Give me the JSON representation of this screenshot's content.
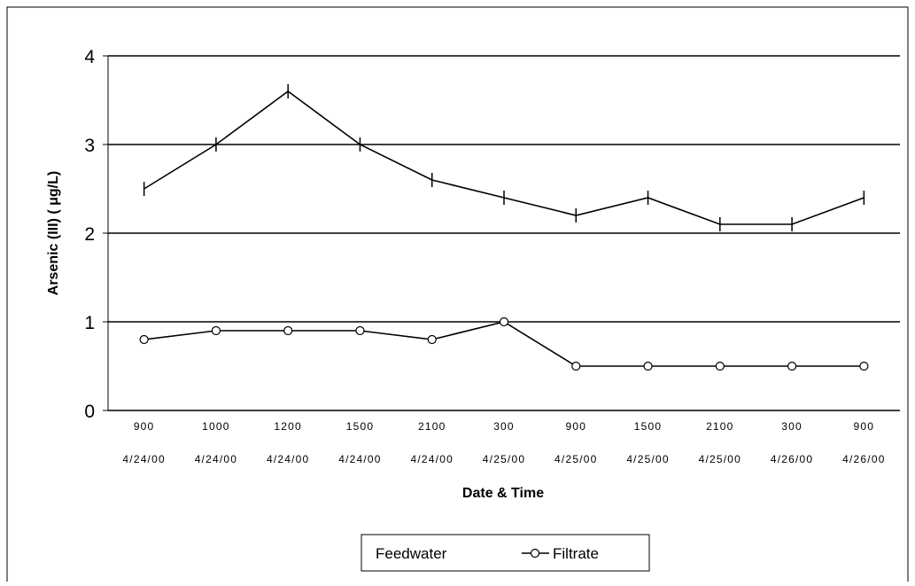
{
  "chart_data": {
    "type": "line",
    "categories": [
      [
        "900",
        "4/24/00"
      ],
      [
        "1000",
        "4/24/00"
      ],
      [
        "1200",
        "4/24/00"
      ],
      [
        "1500",
        "4/24/00"
      ],
      [
        "2100",
        "4/24/00"
      ],
      [
        "300",
        "4/25/00"
      ],
      [
        "900",
        "4/25/00"
      ],
      [
        "1500",
        "4/25/00"
      ],
      [
        "2100",
        "4/25/00"
      ],
      [
        "300",
        "4/26/00"
      ],
      [
        "900",
        "4/26/00"
      ]
    ],
    "series": [
      {
        "name": "Feedwater",
        "marker": "dash",
        "values": [
          2.5,
          3.0,
          3.6,
          3.0,
          2.6,
          2.4,
          2.2,
          2.4,
          2.1,
          2.1,
          2.4
        ]
      },
      {
        "name": "Filtrate",
        "marker": "circle",
        "values": [
          0.8,
          0.9,
          0.9,
          0.9,
          0.8,
          1.0,
          0.5,
          0.5,
          0.5,
          0.5,
          0.5
        ]
      }
    ],
    "xlabel": "Date & Time",
    "ylabel": "Arsenic (III) (   μg/L)",
    "ylim": [
      0,
      4
    ],
    "yticks": [
      0,
      1,
      2,
      3,
      4
    ],
    "grid": true,
    "legend_position": "bottom"
  }
}
